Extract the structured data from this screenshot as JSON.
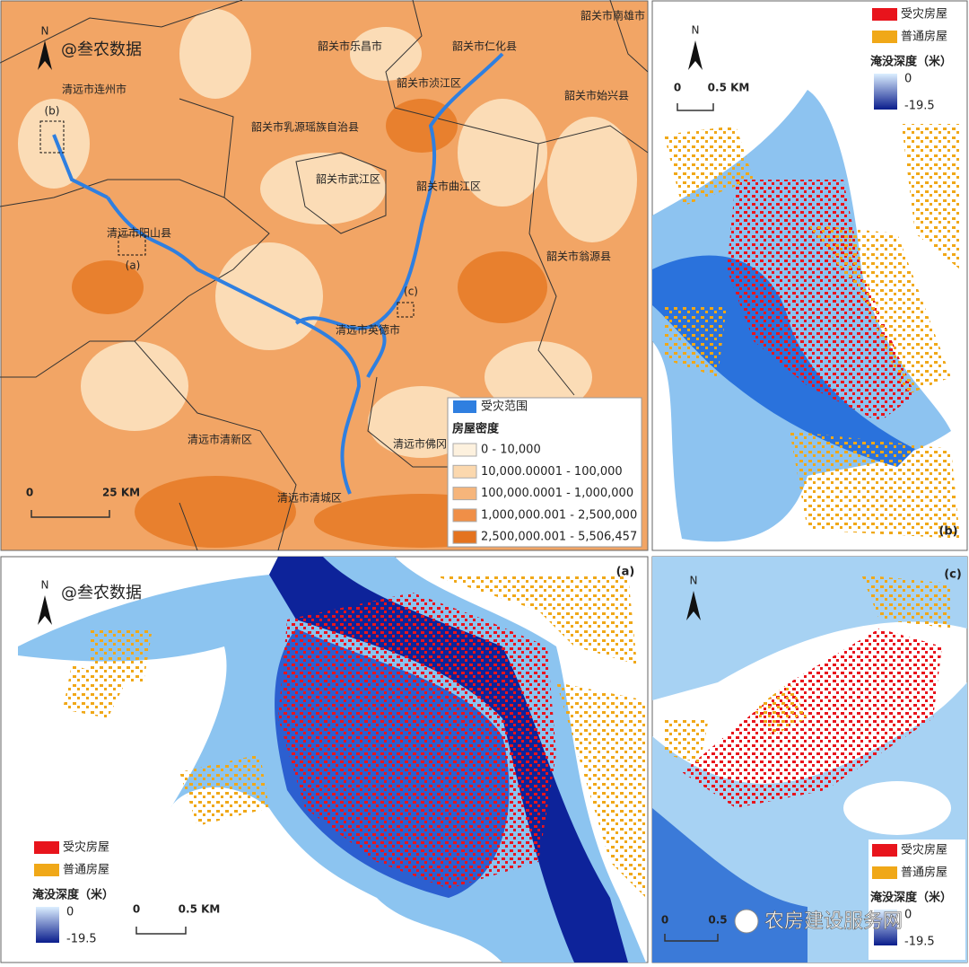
{
  "overview": {
    "watermark": "@叁农数据",
    "north": "N",
    "regions": [
      "韶关市乐昌市",
      "韶关市南雄市",
      "韶关市仁化县",
      "清远市连州市",
      "韶关市浈江区",
      "韶关市始兴县",
      "韶关市乳源瑶族自治县",
      "韶关市武江区",
      "韶关市曲江区",
      "清远市阳山县",
      "韶关市翁源县",
      "清远市英德市",
      "清远市清新区",
      "清远市佛冈",
      "清远市清城区"
    ],
    "sites": [
      "(a)",
      "(b)",
      "(c)"
    ],
    "scale": {
      "start": "0",
      "end": "25 KM"
    },
    "legend": {
      "flood": "受灾范围",
      "density_title": "房屋密度",
      "classes": [
        "0 - 10,000",
        "10,000.00001 - 100,000",
        "100,000.0001 - 1,000,000",
        "1,000,000.001 - 2,500,000",
        "2,500,000.001 - 5,506,457"
      ]
    }
  },
  "panels": [
    {
      "label": "(b)",
      "north": "N",
      "legend": {
        "damaged": "受灾房屋",
        "normal": "普通房屋",
        "depth_title": "淹没深度（米）",
        "depth_max": "0",
        "depth_min": "-19.5"
      },
      "scale": {
        "start": "0",
        "end": "0.5 KM"
      }
    },
    {
      "label": "(a)",
      "north": "N",
      "watermark": "@叁农数据",
      "legend": {
        "damaged": "受灾房屋",
        "normal": "普通房屋",
        "depth_title": "淹没深度（米）",
        "depth_max": "0",
        "depth_min": "-19.5"
      },
      "scale": {
        "start": "0",
        "end": "0.5 KM"
      }
    },
    {
      "label": "(c)",
      "north": "N",
      "watermark": "农房建设服务网",
      "legend": {
        "damaged": "受灾房屋",
        "normal": "普通房屋",
        "depth_title": "淹没深度（米）",
        "depth_max": "0",
        "depth_min": "-19.5"
      },
      "scale": {
        "start": "0",
        "end": "0.5"
      }
    }
  ]
}
